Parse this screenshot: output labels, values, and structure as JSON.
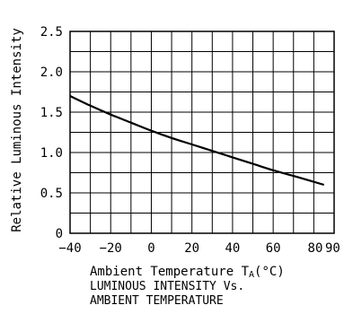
{
  "chart_data": {
    "type": "line",
    "ylabel": "Relative Luminous Intensity",
    "xlabel_main": "Ambient Temperature T",
    "xlabel_sub": "A",
    "xlabel_unit": "(°C)",
    "caption_line1": "LUMINOUS INTENSITY Vs.",
    "caption_line2": "AMBIENT TEMPERATURE",
    "xlim": [
      -40,
      90
    ],
    "ylim": [
      0,
      2.5
    ],
    "x_tick_labels": [
      "−40",
      "−20",
      "0",
      "20",
      "40",
      "60",
      "80",
      "90"
    ],
    "y_tick_labels": [
      "0",
      "0.5",
      "1.0",
      "1.5",
      "2.0",
      "2.5"
    ],
    "grid": true,
    "series": [
      {
        "x": [
          -40,
          -30,
          -20,
          -10,
          0,
          10,
          20,
          30,
          40,
          50,
          60,
          70,
          85
        ],
        "y": [
          1.7,
          1.58,
          1.47,
          1.37,
          1.27,
          1.18,
          1.1,
          1.02,
          0.94,
          0.86,
          0.78,
          0.71,
          0.6
        ]
      }
    ]
  }
}
